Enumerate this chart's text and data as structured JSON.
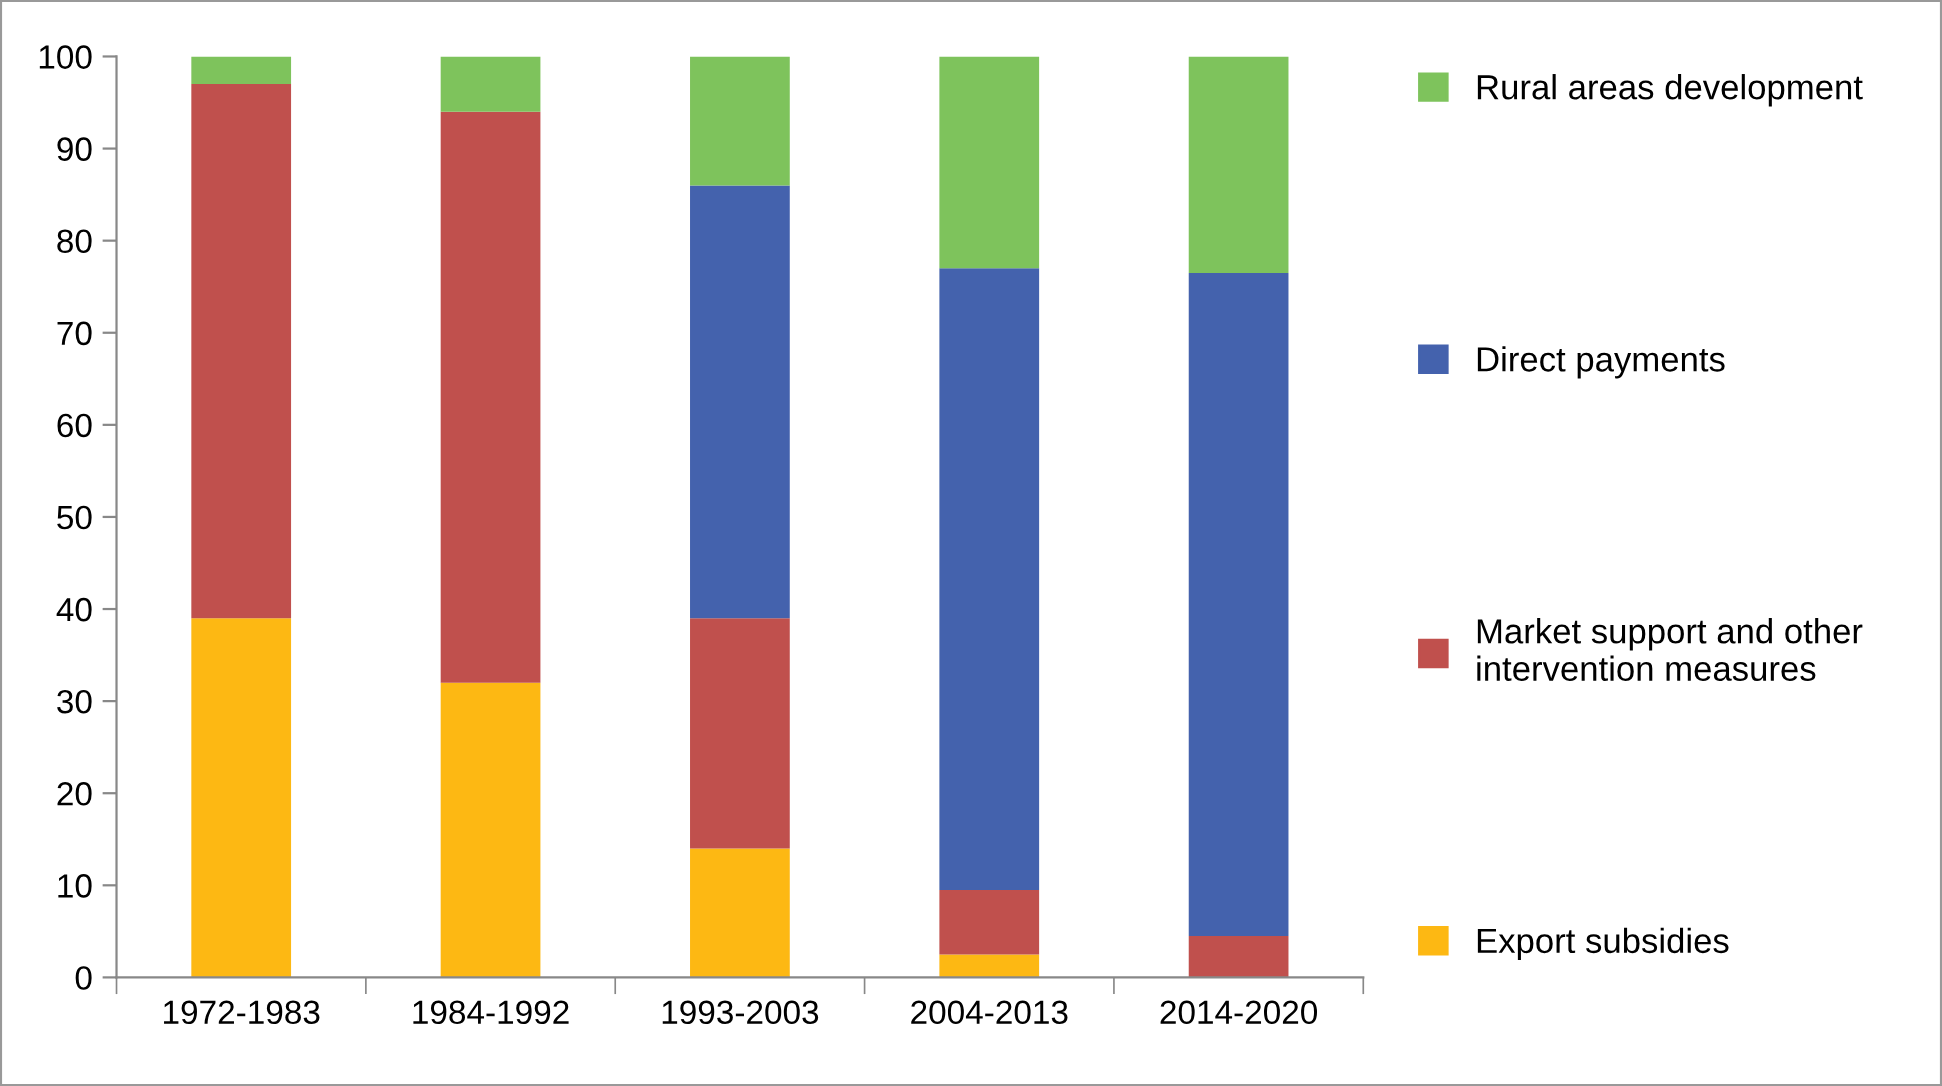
{
  "chart_data": {
    "type": "bar",
    "stacked": true,
    "categories": [
      "1972-1983",
      "1984-1992",
      "1993-2003",
      "2004-2013",
      "2014-2020"
    ],
    "series": [
      {
        "name": "Export subsidies",
        "color": "#fdb813",
        "values": [
          39,
          32,
          14,
          2.5,
          0
        ]
      },
      {
        "name": "Market support and other intervention measures",
        "color": "#c0504d",
        "values": [
          58,
          62,
          25,
          7,
          4.5
        ]
      },
      {
        "name": "Direct payments",
        "color": "#4462ad",
        "values": [
          0,
          0,
          47,
          67.5,
          72
        ]
      },
      {
        "name": "Rural areas development",
        "color": "#7ec35c",
        "values": [
          3,
          6,
          14,
          23,
          23.5
        ]
      }
    ],
    "ylim": [
      0,
      100
    ],
    "yticks": [
      0,
      10,
      20,
      30,
      40,
      50,
      60,
      70,
      80,
      90,
      100
    ],
    "grid": false,
    "legend": "right"
  }
}
